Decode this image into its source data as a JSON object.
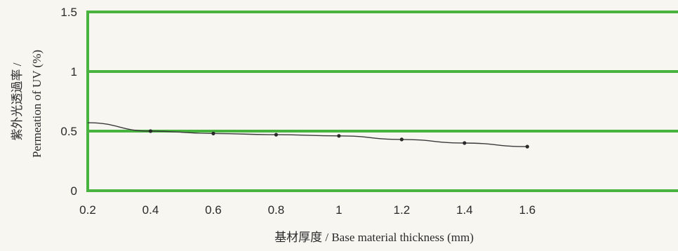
{
  "chart_data": {
    "type": "line",
    "title": "",
    "xlabel": "基材厚度 / Base material thickness (mm)",
    "ylabel": {
      "line1": "紫外光透過率 /",
      "line2": "Permeation of UV (%)"
    },
    "x_ticks": [
      "0.2",
      "0.4",
      "0.6",
      "0.8",
      "1",
      "1.2",
      "1.4",
      "1.6"
    ],
    "y_ticks": [
      "0",
      "0.5",
      "1",
      "1.5"
    ],
    "xlim": [
      0.2,
      2.08
    ],
    "ylim": [
      0,
      1.5
    ],
    "grid": true,
    "series": [
      {
        "x": [
          0.2,
          0.4,
          0.6,
          0.8,
          1.0,
          1.2,
          1.4,
          1.6
        ],
        "y": [
          0.57,
          0.5,
          0.48,
          0.47,
          0.46,
          0.43,
          0.4,
          0.37
        ],
        "markers": [
          false,
          true,
          true,
          true,
          true,
          true,
          true,
          true
        ]
      }
    ]
  },
  "colors": {
    "background": "#f7f6f1",
    "frame": "#49b33f",
    "line": "#3a3a3a",
    "marker": "#2a2a2a",
    "text": "#2a2a2a"
  }
}
